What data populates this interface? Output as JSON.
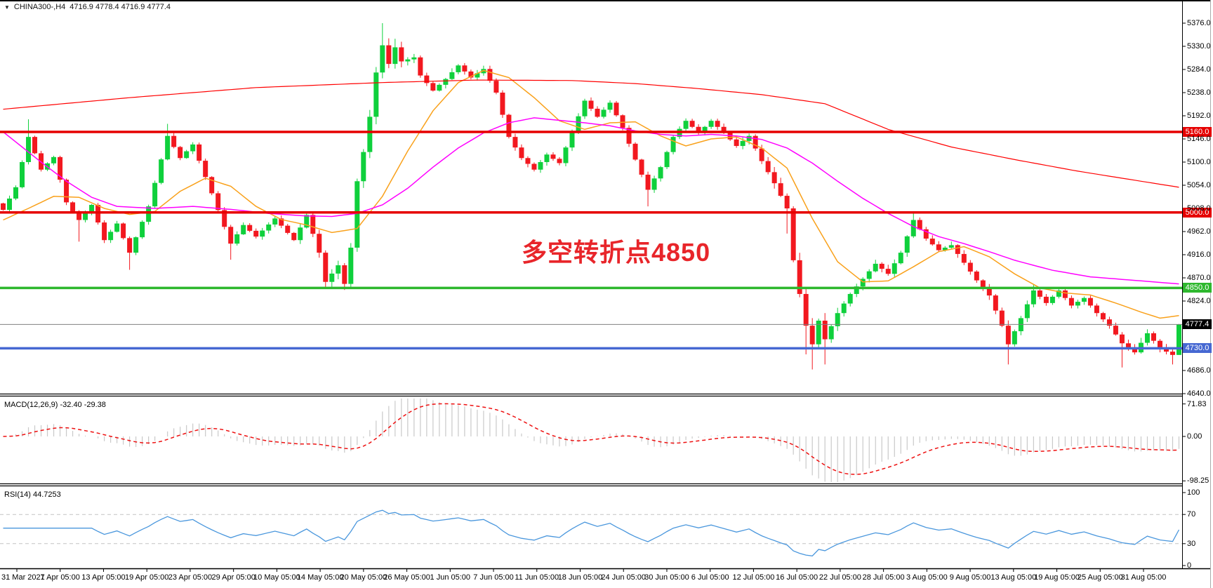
{
  "window": {
    "title_symbol": "CHINA300-,H4",
    "title_ohlc": "4716.9 4778.4 4716.9 4777.4"
  },
  "annotation": {
    "text": "多空转折点4850",
    "color": "#e8252a"
  },
  "colors": {
    "up_candle": "#0fd03c",
    "down_candle": "#f2181f",
    "ma_fast": "#f9a11b",
    "ma_mid": "#ff00ff",
    "ma_slow": "#ff0000",
    "hline_red": "#e60000",
    "hline_green": "#2eb82e",
    "hline_blue": "#4668d2",
    "current_line": "#808080",
    "current_badge": "#000000",
    "macd_hist": "#c9c9c9",
    "macd_signal": "#ee1111",
    "rsi_line": "#4a97dd",
    "rsi_level": "#c4c4c4"
  },
  "price_axis": {
    "tick_labels": [
      "5376.0",
      "5330.0",
      "5284.0",
      "5238.0",
      "5192.0",
      "5146.0",
      "5100.0",
      "5054.0",
      "5008.0",
      "4962.0",
      "4916.0",
      "4870.0",
      "4824.0",
      "4686.0",
      "4640.0"
    ],
    "tick_values": [
      5376,
      5330,
      5284,
      5238,
      5192,
      5146,
      5100,
      5054,
      5008,
      4962,
      4916,
      4870,
      4824,
      4686,
      4640
    ]
  },
  "hlines": [
    {
      "price": 5160,
      "label": "5160.0",
      "color": "#e60000"
    },
    {
      "price": 5000,
      "label": "5000.0",
      "color": "#e60000"
    },
    {
      "price": 4850,
      "label": "4850.0",
      "color": "#2eb82e"
    },
    {
      "price": 4730,
      "label": "4730.0",
      "color": "#4668d2"
    }
  ],
  "current_price": {
    "value": 4777.4,
    "label": "4777.4"
  },
  "time_axis": {
    "labels": [
      "31 Mar 2021",
      "7 Apr 05:00",
      "13 Apr 05:00",
      "19 Apr 05:00",
      "23 Apr 05:00",
      "29 Apr 05:00",
      "10 May 05:00",
      "14 May 05:00",
      "20 May 05:00",
      "26 May 05:00",
      "1 Jun 05:00",
      "7 Jun 05:00",
      "11 Jun 05:00",
      "18 Jun 05:00",
      "24 Jun 05:00",
      "30 Jun 05:00",
      "6 Jul 05:00",
      "12 Jul 05:00",
      "16 Jul 05:00",
      "22 Jul 05:00",
      "28 Jul 05:00",
      "3 Aug 05:00",
      "9 Aug 05:00",
      "13 Aug 05:00",
      "19 Aug 05:00",
      "25 Aug 05:00",
      "31 Aug 05:00"
    ]
  },
  "indicators": {
    "macd": {
      "label": "MACD(12,26,9)",
      "values_text": "-32.40 -29.38",
      "tick_labels": [
        "71.83",
        "0.00",
        "-98.25"
      ],
      "tick_values": [
        71.83,
        0,
        -98.25
      ]
    },
    "rsi": {
      "label": "RSI(14)",
      "value_text": "44.7253",
      "tick_labels": [
        "100",
        "70",
        "30",
        "0"
      ],
      "tick_values": [
        100,
        70,
        30,
        0
      ],
      "levels": [
        70,
        30
      ]
    }
  },
  "chart_data": {
    "type": "candlestick",
    "symbol": "CHINA300-",
    "timeframe": "H4",
    "title": "CHINA300-,H4",
    "ylim": [
      4640,
      5376
    ],
    "last_bar": {
      "open": 4716.9,
      "high": 4778.4,
      "low": 4716.9,
      "close": 4777.4
    },
    "bar_count": 187,
    "first_open": 5018,
    "close_anchors": [
      [
        0,
        5005
      ],
      [
        2,
        5050
      ],
      [
        4,
        5150
      ],
      [
        6,
        5085
      ],
      [
        8,
        5110
      ],
      [
        10,
        5020
      ],
      [
        12,
        4985
      ],
      [
        14,
        5015
      ],
      [
        16,
        4945
      ],
      [
        18,
        4978
      ],
      [
        20,
        4920
      ],
      [
        23,
        5012
      ],
      [
        26,
        5152
      ],
      [
        28,
        5108
      ],
      [
        30,
        5135
      ],
      [
        33,
        5038
      ],
      [
        36,
        4938
      ],
      [
        38,
        4975
      ],
      [
        40,
        4952
      ],
      [
        43,
        4988
      ],
      [
        46,
        4945
      ],
      [
        48,
        4995
      ],
      [
        50,
        4920
      ],
      [
        51,
        4862
      ],
      [
        53,
        4895
      ],
      [
        54,
        4858
      ],
      [
        55,
        4930
      ],
      [
        56,
        5062
      ],
      [
        57,
        5120
      ],
      [
        58,
        5190
      ],
      [
        59,
        5278
      ],
      [
        60,
        5332
      ],
      [
        61,
        5295
      ],
      [
        62,
        5328
      ],
      [
        63,
        5300
      ],
      [
        65,
        5308
      ],
      [
        66,
        5272
      ],
      [
        68,
        5242
      ],
      [
        70,
        5265
      ],
      [
        72,
        5292
      ],
      [
        74,
        5268
      ],
      [
        76,
        5285
      ],
      [
        78,
        5238
      ],
      [
        80,
        5150
      ],
      [
        82,
        5108
      ],
      [
        84,
        5085
      ],
      [
        86,
        5115
      ],
      [
        88,
        5098
      ],
      [
        90,
        5160
      ],
      [
        92,
        5222
      ],
      [
        94,
        5190
      ],
      [
        96,
        5218
      ],
      [
        98,
        5168
      ],
      [
        100,
        5105
      ],
      [
        102,
        5045
      ],
      [
        104,
        5090
      ],
      [
        106,
        5150
      ],
      [
        108,
        5182
      ],
      [
        110,
        5158
      ],
      [
        112,
        5182
      ],
      [
        114,
        5158
      ],
      [
        116,
        5132
      ],
      [
        118,
        5152
      ],
      [
        120,
        5102
      ],
      [
        122,
        5058
      ],
      [
        124,
        5008
      ],
      [
        125,
        4905
      ],
      [
        126,
        4838
      ],
      [
        127,
        4775
      ],
      [
        128,
        4738
      ],
      [
        129,
        4785
      ],
      [
        130,
        4748
      ],
      [
        132,
        4800
      ],
      [
        134,
        4838
      ],
      [
        136,
        4868
      ],
      [
        138,
        4898
      ],
      [
        140,
        4878
      ],
      [
        142,
        4920
      ],
      [
        144,
        4985
      ],
      [
        146,
        4948
      ],
      [
        148,
        4925
      ],
      [
        150,
        4935
      ],
      [
        152,
        4900
      ],
      [
        154,
        4865
      ],
      [
        156,
        4835
      ],
      [
        158,
        4775
      ],
      [
        159,
        4738
      ],
      [
        161,
        4790
      ],
      [
        163,
        4845
      ],
      [
        165,
        4820
      ],
      [
        167,
        4845
      ],
      [
        169,
        4815
      ],
      [
        171,
        4830
      ],
      [
        173,
        4800
      ],
      [
        175,
        4775
      ],
      [
        177,
        4740
      ],
      [
        179,
        4722
      ],
      [
        181,
        4760
      ],
      [
        183,
        4730
      ],
      [
        185,
        4716.9
      ],
      [
        186,
        4777.4
      ]
    ],
    "high_overrides": [
      [
        4,
        5185
      ],
      [
        26,
        5176
      ],
      [
        60,
        5376
      ],
      [
        62,
        5345
      ],
      [
        144,
        5001
      ],
      [
        163,
        4856
      ],
      [
        186,
        4778.4
      ]
    ],
    "low_overrides": [
      [
        12,
        4942
      ],
      [
        20,
        4886
      ],
      [
        36,
        4906
      ],
      [
        51,
        4850
      ],
      [
        54,
        4846
      ],
      [
        102,
        5012
      ],
      [
        124,
        4958
      ],
      [
        127,
        4718
      ],
      [
        128,
        4688
      ],
      [
        130,
        4698
      ],
      [
        159,
        4698
      ],
      [
        177,
        4692
      ],
      [
        185,
        4698
      ],
      [
        186,
        4716.9
      ]
    ],
    "wick_anchors": [
      [
        0,
        6
      ],
      [
        40,
        6
      ],
      [
        50,
        10
      ],
      [
        56,
        16
      ],
      [
        62,
        14
      ],
      [
        70,
        8
      ],
      [
        90,
        7
      ],
      [
        110,
        6
      ],
      [
        120,
        8
      ],
      [
        124,
        14
      ],
      [
        128,
        18
      ],
      [
        134,
        10
      ],
      [
        144,
        8
      ],
      [
        154,
        8
      ],
      [
        158,
        12
      ],
      [
        164,
        7
      ],
      [
        174,
        8
      ],
      [
        180,
        10
      ],
      [
        186,
        8
      ]
    ],
    "ma_overlays": [
      {
        "name": "ma-fast-orange",
        "color": "#f9a11b",
        "anchors": [
          [
            0,
            4985
          ],
          [
            4,
            5008
          ],
          [
            8,
            5032
          ],
          [
            12,
            5030
          ],
          [
            16,
            5008
          ],
          [
            20,
            4996
          ],
          [
            24,
            5002
          ],
          [
            28,
            5042
          ],
          [
            32,
            5068
          ],
          [
            36,
            5052
          ],
          [
            40,
            5012
          ],
          [
            44,
            4986
          ],
          [
            48,
            4975
          ],
          [
            52,
            4960
          ],
          [
            56,
            4968
          ],
          [
            60,
            5032
          ],
          [
            64,
            5122
          ],
          [
            68,
            5202
          ],
          [
            72,
            5258
          ],
          [
            76,
            5282
          ],
          [
            80,
            5268
          ],
          [
            84,
            5228
          ],
          [
            88,
            5182
          ],
          [
            92,
            5165
          ],
          [
            96,
            5178
          ],
          [
            100,
            5180
          ],
          [
            104,
            5152
          ],
          [
            108,
            5132
          ],
          [
            112,
            5146
          ],
          [
            116,
            5150
          ],
          [
            120,
            5128
          ],
          [
            124,
            5088
          ],
          [
            128,
            4988
          ],
          [
            132,
            4902
          ],
          [
            136,
            4862
          ],
          [
            140,
            4864
          ],
          [
            144,
            4892
          ],
          [
            148,
            4922
          ],
          [
            152,
            4932
          ],
          [
            156,
            4912
          ],
          [
            160,
            4878
          ],
          [
            164,
            4850
          ],
          [
            168,
            4840
          ],
          [
            172,
            4836
          ],
          [
            176,
            4820
          ],
          [
            180,
            4802
          ],
          [
            183,
            4790
          ],
          [
            186,
            4795
          ]
        ]
      },
      {
        "name": "ma-mid-magenta",
        "color": "#ff00ff",
        "anchors": [
          [
            0,
            5160
          ],
          [
            6,
            5100
          ],
          [
            10,
            5062
          ],
          [
            14,
            5030
          ],
          [
            18,
            5012
          ],
          [
            24,
            5008
          ],
          [
            30,
            5012
          ],
          [
            36,
            5006
          ],
          [
            42,
            4998
          ],
          [
            48,
            4993
          ],
          [
            52,
            4992
          ],
          [
            56,
            4998
          ],
          [
            60,
            5015
          ],
          [
            64,
            5048
          ],
          [
            68,
            5090
          ],
          [
            72,
            5128
          ],
          [
            76,
            5158
          ],
          [
            80,
            5178
          ],
          [
            84,
            5188
          ],
          [
            88,
            5183
          ],
          [
            92,
            5178
          ],
          [
            96,
            5172
          ],
          [
            100,
            5162
          ],
          [
            104,
            5155
          ],
          [
            108,
            5152
          ],
          [
            112,
            5155
          ],
          [
            116,
            5152
          ],
          [
            120,
            5145
          ],
          [
            124,
            5128
          ],
          [
            128,
            5098
          ],
          [
            132,
            5062
          ],
          [
            136,
            5028
          ],
          [
            140,
            4998
          ],
          [
            144,
            4972
          ],
          [
            148,
            4952
          ],
          [
            152,
            4938
          ],
          [
            156,
            4922
          ],
          [
            160,
            4905
          ],
          [
            166,
            4885
          ],
          [
            172,
            4872
          ],
          [
            178,
            4866
          ],
          [
            186,
            4858
          ]
        ]
      },
      {
        "name": "ma-slow-red",
        "color": "#ff0000",
        "anchors": [
          [
            0,
            5205
          ],
          [
            20,
            5228
          ],
          [
            40,
            5248
          ],
          [
            60,
            5258
          ],
          [
            75,
            5263
          ],
          [
            90,
            5262
          ],
          [
            100,
            5256
          ],
          [
            110,
            5246
          ],
          [
            120,
            5234
          ],
          [
            130,
            5216
          ],
          [
            140,
            5165
          ],
          [
            150,
            5130
          ],
          [
            160,
            5105
          ],
          [
            170,
            5082
          ],
          [
            180,
            5062
          ],
          [
            186,
            5050
          ]
        ]
      }
    ],
    "horizontal_levels": [
      5160,
      5000,
      4850,
      4730
    ],
    "current_price": 4777.4,
    "macd": {
      "fast": 12,
      "slow": 26,
      "signal": 9,
      "last": -32.4,
      "last_signal": -29.38,
      "range": [
        -98.25,
        71.83
      ]
    },
    "rsi": {
      "period": 14,
      "last": 44.7253,
      "levels": [
        70,
        30
      ],
      "range": [
        0,
        100
      ]
    }
  }
}
